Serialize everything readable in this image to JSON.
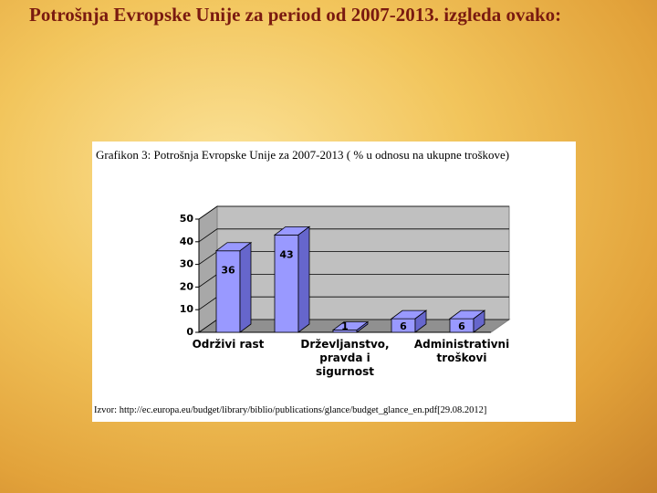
{
  "heading": "Potrošnja Evropske Unije za period od 2007-2013. izgleda ovako:",
  "chart_data": {
    "type": "bar3d",
    "title": "Grafikon 3: Potrošnja Evropske Unije za 2007-2013 ( % u odnosu na ukupne troškove)",
    "source": "Izvor: http://ec.europa.eu/budget/library/biblio/publications/glance/budget_glance_en.pdf[29.08.2012]",
    "categories": [
      "Održivi rast",
      null,
      "Drževljanstvo, pravda i sigurnost",
      null,
      "Administrativni troškovi"
    ],
    "values": [
      36,
      43,
      1,
      6,
      6
    ],
    "color": "#9999ff",
    "ylim": [
      0,
      50
    ],
    "yticks": [
      0,
      10,
      20,
      30,
      40,
      50
    ],
    "grid": true
  }
}
